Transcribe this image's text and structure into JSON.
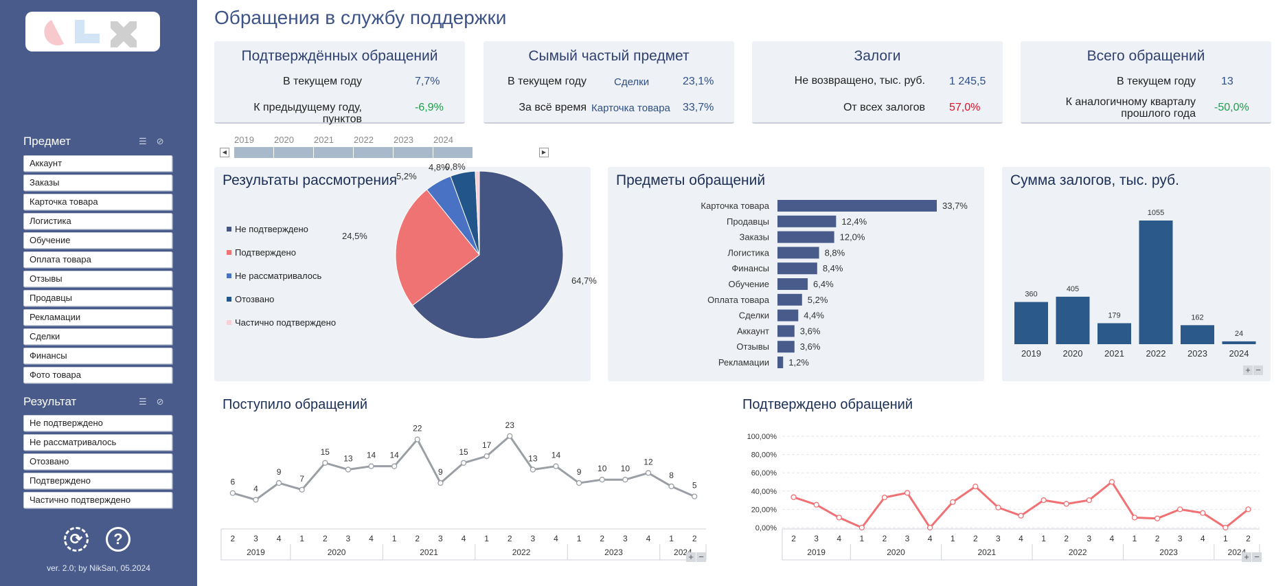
{
  "title": "Обращения в службу поддержки",
  "sidebar": {
    "subject_title": "Предмет",
    "subjects": [
      "Аккаунт",
      "Заказы",
      "Карточка товара",
      "Логистика",
      "Обучение",
      "Оплата товара",
      "Отзывы",
      "Продавцы",
      "Рекламации",
      "Сделки",
      "Финансы",
      "Фото товара"
    ],
    "result_title": "Результат",
    "results": [
      "Не подтверждено",
      "Не рассматривалось",
      "Отозвано",
      "Подтверждено",
      "Частично подтверждено"
    ],
    "refresh_icon": "refresh-icon",
    "help_icon": "help-icon",
    "help_symbol": "?",
    "version": "ver. 2.0; by NikSan, 05.2024"
  },
  "kpis": [
    {
      "title": "Подтверждённых обращений",
      "rows": [
        {
          "label": "В текущем году",
          "value": "7,7%",
          "status": "neutral"
        },
        {
          "label": "К предыдущему году, пунктов",
          "value": "-6,9%",
          "status": "positive"
        }
      ]
    },
    {
      "title": "Сымый частый предмет",
      "rows": [
        {
          "label": "В текущем году",
          "sub": "Сделки",
          "value": "23,1%",
          "status": "neutral"
        },
        {
          "label": "За всё время",
          "sub": "Карточка товара",
          "value": "33,7%",
          "status": "neutral"
        }
      ]
    },
    {
      "title": "Залоги",
      "rows": [
        {
          "label": "Не возвращено, тыс. руб.",
          "value": "1 245,5",
          "status": "neutral"
        },
        {
          "label": "От всех залогов",
          "value": "57,0%",
          "status": "negative"
        }
      ]
    },
    {
      "title": "Всего обращений",
      "rows": [
        {
          "label": "В текущем году",
          "value": "13",
          "status": "neutral"
        },
        {
          "label": "К аналогичному кварталу\nпрошлого года",
          "value": "-50,0%",
          "status": "positive"
        }
      ]
    }
  ],
  "timeline": {
    "years": [
      "2019",
      "2020",
      "2021",
      "2022",
      "2023",
      "2024"
    ]
  },
  "panels": {
    "results_title": "Результаты рассмотрения",
    "subjects_title": "Предметы обращений",
    "deposits_title": "Сумма залогов, тыс. руб.",
    "received_title": "Поступило обращений",
    "confirmed_title": "Подтверждено обращений"
  },
  "colors": {
    "sidebar": "#485b8b",
    "bar": "#485b8b",
    "dep_bar": "#2b5a8a",
    "line_gray": "#9a9ea5",
    "line_red": "#f07073"
  },
  "chart_data": [
    {
      "type": "pie",
      "title": "Результаты рассмотрения",
      "slices": [
        {
          "name": "Не подтверждено",
          "value": 64.7,
          "label": "64,7%",
          "color": "#455583"
        },
        {
          "name": "Подтверждено",
          "value": 24.5,
          "label": "24,5%",
          "color": "#f07373"
        },
        {
          "name": "Не рассматривалось",
          "value": 5.2,
          "label": "5,2%",
          "color": "#4a72c4"
        },
        {
          "name": "Отозвано",
          "value": 4.8,
          "label": "4,8%",
          "color": "#22568a"
        },
        {
          "name": "Частично подтверждено",
          "value": 0.8,
          "label": "0,8%",
          "color": "#f8d0d6"
        }
      ],
      "legend": "left"
    },
    {
      "type": "bar",
      "orientation": "horizontal",
      "title": "Предметы обращений",
      "categories": [
        "Карточка товара",
        "Продавцы",
        "Заказы",
        "Логистика",
        "Финансы",
        "Обучение",
        "Оплата товара",
        "Сделки",
        "Аккаунт",
        "Отзывы",
        "Рекламации"
      ],
      "values": [
        33.7,
        12.4,
        12.0,
        8.8,
        8.4,
        6.4,
        5.2,
        4.4,
        3.6,
        3.6,
        1.2
      ],
      "labels": [
        "33,7%",
        "12,4%",
        "12,0%",
        "8,8%",
        "8,4%",
        "6,4%",
        "5,2%",
        "4,4%",
        "3,6%",
        "3,6%",
        "1,2%"
      ]
    },
    {
      "type": "bar",
      "title": "Сумма залогов, тыс. руб.",
      "categories": [
        "2019",
        "2020",
        "2021",
        "2022",
        "2023",
        "2024"
      ],
      "values": [
        360,
        405,
        179,
        1055,
        162,
        24
      ]
    },
    {
      "type": "line",
      "title": "Поступило обращений",
      "x_quarters": [
        "2",
        "3",
        "4",
        "1",
        "2",
        "3",
        "4",
        "1",
        "2",
        "3",
        "4",
        "1",
        "2",
        "3",
        "4",
        "1",
        "2",
        "3",
        "4",
        "1",
        "2"
      ],
      "x_years": [
        {
          "year": "2019",
          "span": 3
        },
        {
          "year": "2020",
          "span": 4
        },
        {
          "year": "2021",
          "span": 4
        },
        {
          "year": "2022",
          "span": 4
        },
        {
          "year": "2023",
          "span": 4
        },
        {
          "year": "2024",
          "span": 2
        }
      ],
      "values": [
        6,
        4,
        9,
        7,
        15,
        13,
        14,
        14,
        22,
        9,
        15,
        17,
        23,
        13,
        14,
        9,
        10,
        10,
        12,
        8,
        5
      ]
    },
    {
      "type": "line",
      "title": "Подтверждено обращений",
      "y_ticks": [
        "0,00%",
        "20,00%",
        "40,00%",
        "60,00%",
        "80,00%",
        "100,00%"
      ],
      "ylim": [
        0,
        100
      ],
      "x_quarters": [
        "2",
        "3",
        "4",
        "1",
        "2",
        "3",
        "4",
        "1",
        "2",
        "3",
        "4",
        "1",
        "2",
        "3",
        "4",
        "1",
        "2",
        "3",
        "4",
        "1",
        "2"
      ],
      "x_years": [
        {
          "year": "2019",
          "span": 3
        },
        {
          "year": "2020",
          "span": 4
        },
        {
          "year": "2021",
          "span": 4
        },
        {
          "year": "2022",
          "span": 4
        },
        {
          "year": "2023",
          "span": 4
        },
        {
          "year": "2024",
          "span": 2
        }
      ],
      "values": [
        33.3,
        25,
        11,
        0,
        33,
        38,
        0,
        28,
        45,
        22,
        13,
        30,
        26,
        30,
        50,
        11,
        10,
        20,
        16,
        0,
        20
      ]
    }
  ]
}
